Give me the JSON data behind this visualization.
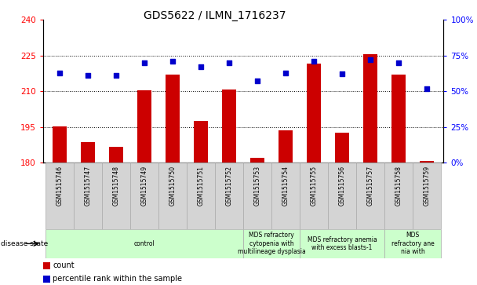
{
  "title": "GDS5622 / ILMN_1716237",
  "samples": [
    "GSM1515746",
    "GSM1515747",
    "GSM1515748",
    "GSM1515749",
    "GSM1515750",
    "GSM1515751",
    "GSM1515752",
    "GSM1515753",
    "GSM1515754",
    "GSM1515755",
    "GSM1515756",
    "GSM1515757",
    "GSM1515758",
    "GSM1515759"
  ],
  "counts": [
    195.2,
    188.5,
    186.5,
    210.5,
    217.0,
    197.5,
    210.8,
    182.0,
    193.5,
    221.5,
    192.5,
    225.5,
    217.0,
    180.5
  ],
  "percentiles": [
    63,
    61,
    61,
    70,
    71,
    67,
    70,
    57,
    63,
    71,
    62,
    72,
    70,
    52
  ],
  "bar_color": "#cc0000",
  "dot_color": "#0000cc",
  "ylim_left": [
    180,
    240
  ],
  "ylim_right": [
    0,
    100
  ],
  "yticks_left": [
    180,
    195,
    210,
    225,
    240
  ],
  "yticks_right": [
    0,
    25,
    50,
    75,
    100
  ],
  "disease_groups": [
    {
      "label": "control",
      "start": 0,
      "end": 7
    },
    {
      "label": "MDS refractory\ncytopenia with\nmultilineage dysplasia",
      "start": 7,
      "end": 9
    },
    {
      "label": "MDS refractory anemia\nwith excess blasts-1",
      "start": 9,
      "end": 12
    },
    {
      "label": "MDS\nrefractory ane\nnia with",
      "start": 12,
      "end": 14
    }
  ],
  "background_color": "#ffffff",
  "bar_width": 0.5,
  "base_value": 180
}
